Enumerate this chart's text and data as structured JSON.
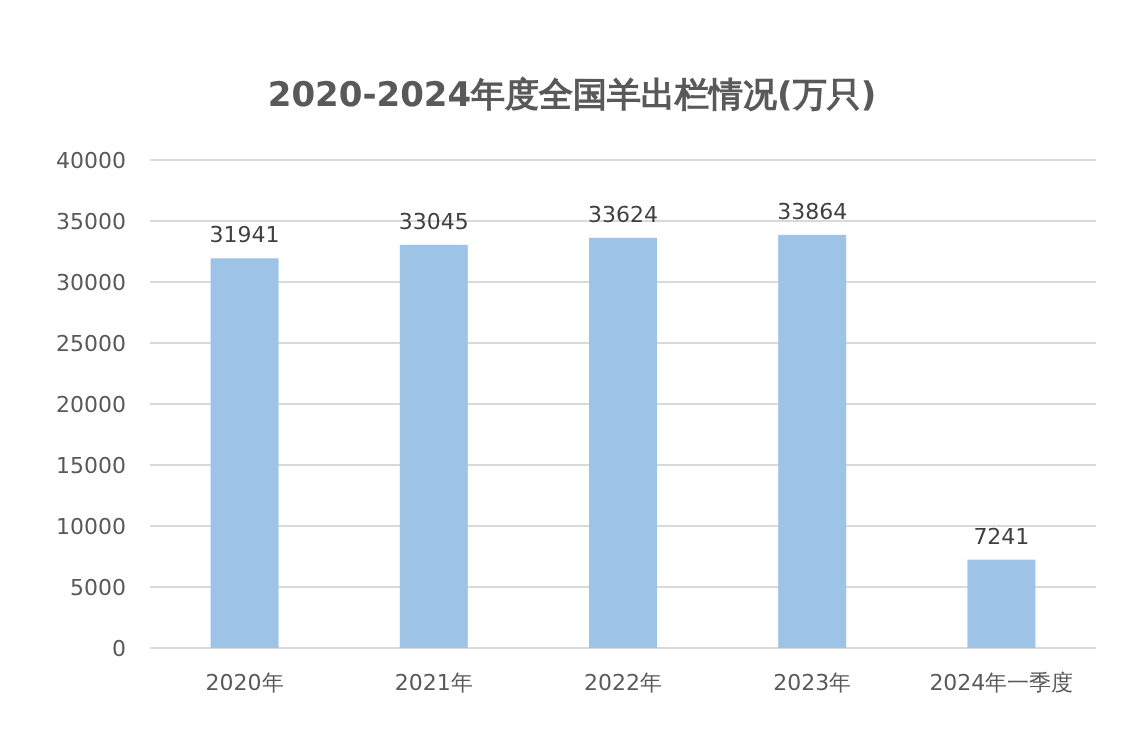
{
  "chart_data": {
    "type": "bar",
    "title": "2020-2024年度全国羊出栏情况(万只)",
    "categories": [
      "2020年",
      "2021年",
      "2022年",
      "2023年",
      "2024年一季度"
    ],
    "values": [
      31941,
      33045,
      33624,
      33864,
      7241
    ],
    "color": "#9dc3e6",
    "data_labels": true,
    "grid": "y",
    "ylim": [
      0,
      40000
    ],
    "yticks": [
      0,
      5000,
      10000,
      15000,
      20000,
      25000,
      30000,
      35000,
      40000
    ]
  }
}
